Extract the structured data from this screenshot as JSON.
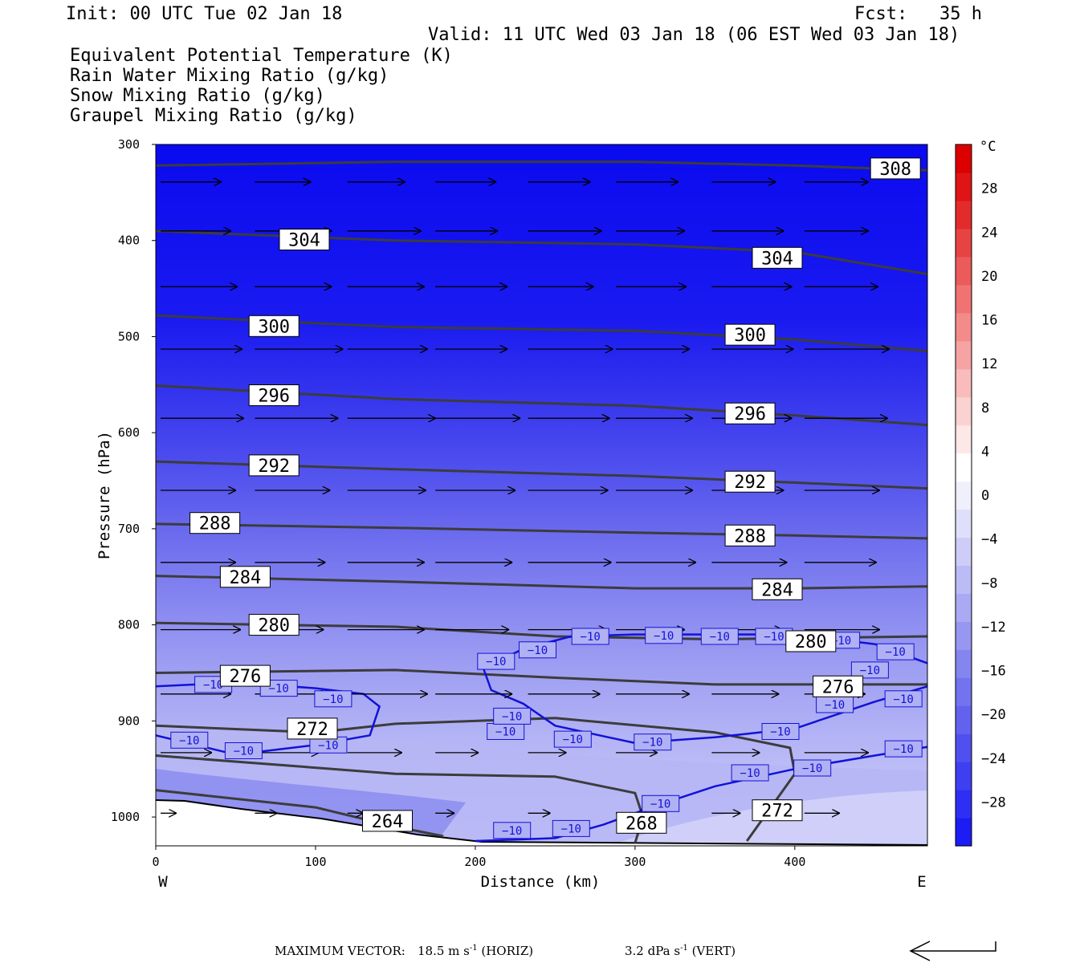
{
  "header": {
    "init": "Init: 00 UTC Tue 02 Jan 18",
    "fcst": "Fcst:   35 h",
    "valid": "Valid: 11 UTC Wed 03 Jan 18 (06 EST Wed 03 Jan 18)",
    "legend": [
      {
        "label": "Equivalent Potential Temperature (K)",
        "color": "#444444"
      },
      {
        "label": "Rain Water Mixing Ratio (g/kg)",
        "color": "#0a7a0a"
      },
      {
        "label": "Snow Mixing Ratio (g/kg)",
        "color": "#f08a4b"
      },
      {
        "label": "Graupel Mixing Ratio (g/kg)",
        "color": "#e873e8"
      }
    ]
  },
  "footer": {
    "max_vector_label": "MAXIMUM VECTOR:",
    "horiz": "18.5 m s",
    "horiz_exp": "-1",
    "horiz_unit": " (HORIZ)",
    "vert": "3.2 dPa s",
    "vert_exp": "-1",
    "vert_unit": " (VERT)"
  },
  "chart_data": {
    "type": "contour",
    "xlabel": "Distance (km)",
    "ylabel": "Pressure (hPa)",
    "xlim": [
      0,
      483
    ],
    "ylim": [
      300,
      1030
    ],
    "y_scale": "linear-reversed",
    "x_ticks": [
      0,
      100,
      200,
      300,
      400
    ],
    "y_ticks": [
      300,
      400,
      500,
      600,
      700,
      800,
      900,
      1000
    ],
    "x_end_labels": {
      "left": "W",
      "right": "E"
    },
    "colorbar": {
      "unit": "°C",
      "tick_labels": [
        "28",
        "24",
        "20",
        "16",
        "12",
        "8",
        "4",
        "0",
        "−4",
        "−8",
        "−12",
        "−16",
        "−20",
        "−24",
        "−28"
      ],
      "tick_values": [
        28,
        24,
        20,
        16,
        12,
        8,
        4,
        0,
        -4,
        -8,
        -12,
        -16,
        -20,
        -24,
        -28
      ],
      "range": [
        -32,
        32
      ],
      "colors": [
        "#1c1cf5",
        "#2e2ef4",
        "#3f3ff2",
        "#5050f0",
        "#6262ef",
        "#7373ef",
        "#8585f0",
        "#9797f2",
        "#a9a9f4",
        "#bbbbf6",
        "#cdcdf8",
        "#dfdffb",
        "#f0f0fd",
        "#ffffff",
        "#fde8e8",
        "#fbd2d2",
        "#f9bbbb",
        "#f6a3a3",
        "#f38b8b",
        "#f07373",
        "#ec5b5b",
        "#e84343",
        "#e42b2b",
        "#e01414",
        "#dc0000"
      ]
    },
    "theta_e_contours": [
      {
        "value": "308",
        "points": [
          [
            0,
            322
          ],
          [
            150,
            318
          ],
          [
            300,
            318
          ],
          [
            400,
            322
          ],
          [
            483,
            327
          ]
        ]
      },
      {
        "value": "304",
        "points": [
          [
            0,
            390
          ],
          [
            150,
            400
          ],
          [
            300,
            404
          ],
          [
            400,
            412
          ],
          [
            483,
            435
          ]
        ]
      },
      {
        "value": "300",
        "points": [
          [
            0,
            478
          ],
          [
            150,
            490
          ],
          [
            300,
            494
          ],
          [
            400,
            503
          ],
          [
            483,
            515
          ]
        ]
      },
      {
        "value": "296",
        "points": [
          [
            0,
            551
          ],
          [
            150,
            565
          ],
          [
            300,
            572
          ],
          [
            400,
            582
          ],
          [
            483,
            592
          ]
        ]
      },
      {
        "value": "292",
        "points": [
          [
            0,
            630
          ],
          [
            150,
            638
          ],
          [
            300,
            645
          ],
          [
            400,
            652
          ],
          [
            483,
            658
          ]
        ]
      },
      {
        "value": "288",
        "points": [
          [
            0,
            695
          ],
          [
            150,
            699
          ],
          [
            300,
            704
          ],
          [
            400,
            707
          ],
          [
            483,
            710
          ]
        ]
      },
      {
        "value": "284",
        "points": [
          [
            0,
            749
          ],
          [
            150,
            755
          ],
          [
            300,
            762
          ],
          [
            400,
            762
          ],
          [
            483,
            760
          ]
        ]
      },
      {
        "value": "280",
        "points": [
          [
            0,
            798
          ],
          [
            150,
            802
          ],
          [
            250,
            812
          ],
          [
            350,
            815
          ],
          [
            483,
            812
          ]
        ]
      },
      {
        "value": "276",
        "points": [
          [
            0,
            850
          ],
          [
            150,
            847
          ],
          [
            250,
            855
          ],
          [
            350,
            862
          ],
          [
            483,
            862
          ]
        ]
      },
      {
        "value": "272",
        "points": [
          [
            0,
            905
          ],
          [
            100,
            912
          ],
          [
            150,
            903
          ],
          [
            250,
            897
          ],
          [
            350,
            912
          ],
          [
            397,
            928
          ],
          [
            400,
            955
          ],
          [
            370,
            1025
          ]
        ]
      },
      {
        "value": "268",
        "points": [
          [
            0,
            936
          ],
          [
            150,
            955
          ],
          [
            250,
            958
          ],
          [
            300,
            975
          ],
          [
            305,
            1000
          ],
          [
            300,
            1027
          ]
        ]
      },
      {
        "value": "264",
        "points": [
          [
            0,
            972
          ],
          [
            100,
            990
          ],
          [
            150,
            1010
          ],
          [
            180,
            1020
          ]
        ]
      }
    ],
    "theta_e_labels": [
      {
        "text": "308",
        "x": 463,
        "p": 325
      },
      {
        "text": "304",
        "x": 93,
        "p": 399
      },
      {
        "text": "304",
        "x": 389,
        "p": 418
      },
      {
        "text": "300",
        "x": 74,
        "p": 489
      },
      {
        "text": "300",
        "x": 372,
        "p": 498
      },
      {
        "text": "296",
        "x": 74,
        "p": 561
      },
      {
        "text": "296",
        "x": 372,
        "p": 580
      },
      {
        "text": "292",
        "x": 74,
        "p": 634
      },
      {
        "text": "292",
        "x": 372,
        "p": 651
      },
      {
        "text": "288",
        "x": 37,
        "p": 694
      },
      {
        "text": "288",
        "x": 372,
        "p": 707
      },
      {
        "text": "284",
        "x": 56,
        "p": 750
      },
      {
        "text": "284",
        "x": 389,
        "p": 763
      },
      {
        "text": "280",
        "x": 74,
        "p": 800
      },
      {
        "text": "280",
        "x": 410,
        "p": 817
      },
      {
        "text": "276",
        "x": 56,
        "p": 853
      },
      {
        "text": "276",
        "x": 427,
        "p": 864
      },
      {
        "text": "272",
        "x": 98,
        "p": 908
      },
      {
        "text": "272",
        "x": 389,
        "p": 993
      },
      {
        "text": "268",
        "x": 304,
        "p": 1006
      },
      {
        "text": "264",
        "x": 145,
        "p": 1004
      }
    ],
    "minus10_isotherm": {
      "label": "−10",
      "segments": [
        [
          [
            0,
            864
          ],
          [
            50,
            860
          ],
          [
            100,
            866
          ],
          [
            130,
            872
          ],
          [
            140,
            885
          ],
          [
            134,
            915
          ],
          [
            100,
            925
          ],
          [
            50,
            935
          ],
          [
            0,
            915
          ]
        ],
        [
          [
            205,
            845
          ],
          [
            210,
            868
          ],
          [
            230,
            882
          ],
          [
            250,
            905
          ],
          [
            300,
            923
          ],
          [
            350,
            917
          ],
          [
            400,
            908
          ],
          [
            450,
            880
          ],
          [
            483,
            864
          ]
        ],
        [
          [
            205,
            845
          ],
          [
            230,
            825
          ],
          [
            260,
            812
          ],
          [
            300,
            810
          ],
          [
            400,
            810
          ],
          [
            450,
            820
          ],
          [
            483,
            840
          ]
        ],
        [
          [
            200,
            1025
          ],
          [
            250,
            1022
          ],
          [
            280,
            1008
          ],
          [
            310,
            990
          ],
          [
            350,
            968
          ],
          [
            400,
            950
          ],
          [
            450,
            936
          ],
          [
            483,
            927
          ]
        ]
      ],
      "label_positions": [
        [
          36,
          862
        ],
        [
          77,
          866
        ],
        [
          111,
          877
        ],
        [
          108,
          925
        ],
        [
          55,
          931
        ],
        [
          21,
          920
        ],
        [
          213,
          838
        ],
        [
          239,
          826
        ],
        [
          272,
          812
        ],
        [
          318,
          811
        ],
        [
          353,
          812
        ],
        [
          387,
          812
        ],
        [
          429,
          816
        ],
        [
          463,
          828
        ],
        [
          447,
          847
        ],
        [
          468,
          877
        ],
        [
          425,
          883
        ],
        [
          391,
          911
        ],
        [
          311,
          922
        ],
        [
          261,
          919
        ],
        [
          219,
          911
        ],
        [
          223,
          895
        ],
        [
          468,
          929
        ],
        [
          411,
          949
        ],
        [
          372,
          954
        ],
        [
          316,
          986
        ],
        [
          260,
          1012
        ],
        [
          223,
          1014
        ]
      ]
    },
    "wind_vectors": [
      [
        3,
        339,
        38,
        0
      ],
      [
        62,
        339,
        35,
        0
      ],
      [
        120,
        339,
        36,
        0
      ],
      [
        175,
        339,
        38,
        0
      ],
      [
        233,
        339,
        39,
        0
      ],
      [
        288,
        339,
        39,
        0
      ],
      [
        348,
        339,
        40,
        0
      ],
      [
        406,
        339,
        40,
        0
      ],
      [
        3,
        390,
        44,
        0
      ],
      [
        62,
        390,
        48,
        0
      ],
      [
        120,
        390,
        46,
        0
      ],
      [
        175,
        390,
        39,
        0
      ],
      [
        233,
        390,
        46,
        0
      ],
      [
        288,
        390,
        43,
        0
      ],
      [
        348,
        390,
        45,
        0
      ],
      [
        406,
        390,
        40,
        0
      ],
      [
        3,
        448,
        48,
        0
      ],
      [
        62,
        448,
        48,
        0
      ],
      [
        120,
        448,
        48,
        0
      ],
      [
        175,
        448,
        45,
        0
      ],
      [
        233,
        448,
        41,
        0
      ],
      [
        288,
        448,
        44,
        0
      ],
      [
        348,
        448,
        50,
        0
      ],
      [
        406,
        448,
        46,
        0
      ],
      [
        3,
        513,
        51,
        0
      ],
      [
        62,
        513,
        55,
        0
      ],
      [
        120,
        513,
        50,
        0
      ],
      [
        175,
        513,
        45,
        0
      ],
      [
        233,
        513,
        53,
        0
      ],
      [
        288,
        513,
        46,
        0
      ],
      [
        348,
        513,
        51,
        0
      ],
      [
        406,
        513,
        53,
        0
      ],
      [
        3,
        585,
        52,
        0
      ],
      [
        62,
        585,
        52,
        0
      ],
      [
        120,
        585,
        55,
        0
      ],
      [
        175,
        585,
        53,
        0
      ],
      [
        233,
        585,
        51,
        0
      ],
      [
        288,
        585,
        48,
        0
      ],
      [
        348,
        585,
        50,
        0
      ],
      [
        406,
        585,
        52,
        0
      ],
      [
        3,
        660,
        47,
        0
      ],
      [
        62,
        660,
        47,
        0
      ],
      [
        120,
        660,
        49,
        0
      ],
      [
        175,
        660,
        50,
        0
      ],
      [
        233,
        660,
        50,
        0
      ],
      [
        288,
        660,
        48,
        0
      ],
      [
        348,
        660,
        45,
        0
      ],
      [
        406,
        660,
        47,
        0
      ],
      [
        3,
        735,
        47,
        0
      ],
      [
        62,
        735,
        44,
        0
      ],
      [
        120,
        735,
        48,
        0
      ],
      [
        175,
        735,
        48,
        0
      ],
      [
        233,
        735,
        52,
        0
      ],
      [
        288,
        735,
        50,
        0
      ],
      [
        348,
        735,
        47,
        0
      ],
      [
        406,
        735,
        45,
        0
      ],
      [
        3,
        805,
        50,
        0
      ],
      [
        62,
        805,
        43,
        0
      ],
      [
        120,
        805,
        48,
        0
      ],
      [
        175,
        805,
        46,
        0
      ],
      [
        233,
        805,
        49,
        0
      ],
      [
        288,
        805,
        43,
        0
      ],
      [
        348,
        805,
        44,
        0
      ],
      [
        406,
        805,
        47,
        0
      ],
      [
        3,
        872,
        44,
        0
      ],
      [
        62,
        872,
        46,
        0
      ],
      [
        120,
        872,
        50,
        0
      ],
      [
        175,
        872,
        48,
        0
      ],
      [
        233,
        872,
        45,
        0
      ],
      [
        288,
        872,
        46,
        0
      ],
      [
        348,
        872,
        42,
        0
      ],
      [
        406,
        872,
        38,
        0
      ],
      [
        3,
        933,
        32,
        0
      ],
      [
        62,
        933,
        40,
        0
      ],
      [
        120,
        933,
        34,
        0
      ],
      [
        175,
        933,
        27,
        0
      ],
      [
        233,
        933,
        24,
        0
      ],
      [
        288,
        933,
        26,
        0
      ],
      [
        348,
        933,
        30,
        0
      ],
      [
        406,
        933,
        40,
        0
      ],
      [
        3,
        996,
        10,
        0
      ],
      [
        62,
        996,
        14,
        0
      ],
      [
        120,
        996,
        10,
        0
      ],
      [
        175,
        996,
        12,
        0
      ],
      [
        233,
        996,
        14,
        0
      ],
      [
        288,
        996,
        20,
        0
      ],
      [
        348,
        996,
        18,
        0
      ],
      [
        406,
        996,
        22,
        0
      ]
    ]
  }
}
